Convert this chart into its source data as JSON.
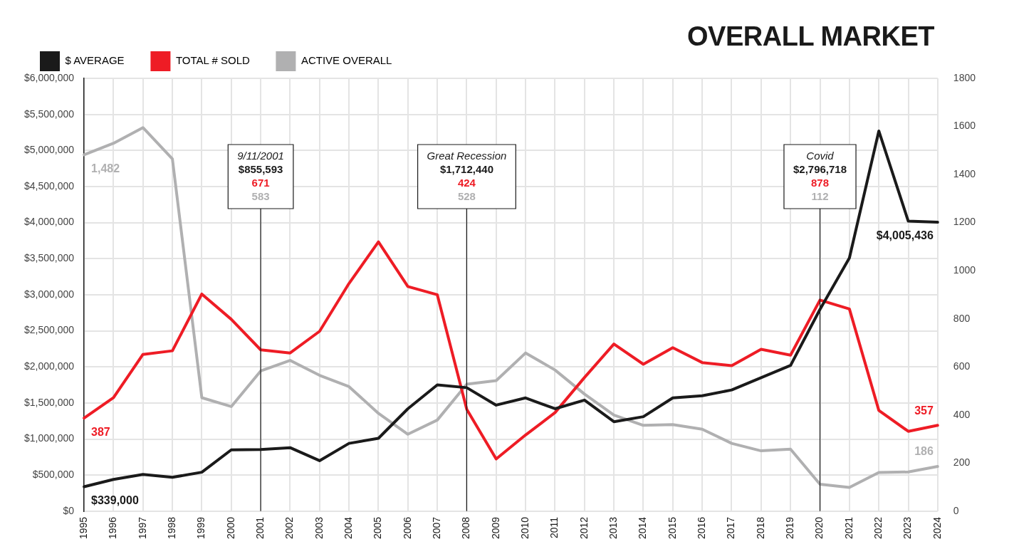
{
  "chart_data": {
    "type": "line",
    "title": "OVERALL MARKET",
    "categories": [
      "1995",
      "1996",
      "1997",
      "1998",
      "1999",
      "2000",
      "2001",
      "2002",
      "2003",
      "2004",
      "2005",
      "2006",
      "2007",
      "2008",
      "2009",
      "2010",
      "2011",
      "2012",
      "2013",
      "2014",
      "2015",
      "2016",
      "2017",
      "2018",
      "2019",
      "2020",
      "2021",
      "2022",
      "2023",
      "2024"
    ],
    "series": [
      {
        "name": "$ AVERAGE",
        "color": "#1a1a1a",
        "values": [
          339000,
          440000,
          510000,
          470000,
          540000,
          850000,
          855593,
          880000,
          700000,
          940000,
          1010000,
          1420000,
          1750000,
          1712440,
          1470000,
          1570000,
          1420000,
          1540000,
          1240000,
          1310000,
          1570000,
          1600000,
          1680000,
          1850000,
          2020000,
          2796718,
          3510000,
          5270000,
          4020000,
          4005436
        ],
        "value_labels": [
          "$339,000",
          null,
          null,
          null,
          null,
          null,
          null,
          null,
          null,
          null,
          null,
          null,
          null,
          null,
          null,
          null,
          null,
          null,
          null,
          null,
          null,
          null,
          null,
          null,
          null,
          null,
          null,
          null,
          null,
          "$4,005,436"
        ]
      },
      {
        "name": "TOTAL # SOLD",
        "color": "#ee1c25",
        "axis": "y2",
        "values": [
          387,
          472,
          652,
          667,
          903,
          798,
          671,
          658,
          748,
          947,
          1120,
          934,
          900,
          424,
          217,
          317,
          410,
          556,
          695,
          611,
          680,
          618,
          605,
          673,
          649,
          878,
          841,
          419,
          332,
          357
        ],
        "value_labels": [
          "387",
          null,
          null,
          null,
          null,
          null,
          null,
          null,
          null,
          null,
          null,
          null,
          null,
          null,
          null,
          null,
          null,
          null,
          null,
          null,
          null,
          null,
          null,
          null,
          null,
          null,
          null,
          null,
          null,
          "357"
        ]
      },
      {
        "name": "ACTIVE OVERALL",
        "color": "#b0b0b1",
        "axis": "y2",
        "values": [
          1482,
          1530,
          1595,
          1465,
          472,
          435,
          583,
          627,
          565,
          518,
          407,
          320,
          379,
          528,
          543,
          658,
          587,
          487,
          400,
          357,
          360,
          341,
          282,
          251,
          258,
          112,
          99,
          161,
          163,
          186
        ],
        "value_labels": [
          "1,482",
          null,
          null,
          null,
          null,
          null,
          null,
          null,
          null,
          null,
          null,
          null,
          null,
          null,
          null,
          null,
          null,
          null,
          null,
          null,
          null,
          null,
          null,
          null,
          null,
          null,
          null,
          null,
          null,
          "186"
        ]
      }
    ],
    "annotations": [
      "9/11/2001",
      "$855,593",
      "671",
      "583",
      "Great Recession",
      "$1,712,440",
      "424",
      "528",
      "Covid",
      "$2,796,718",
      "878",
      "112"
    ],
    "ylim": [
      0,
      6000000
    ],
    "yticks": [
      {
        "value": 0,
        "label": "$0"
      },
      {
        "value": 500000,
        "label": "$500,000"
      },
      {
        "value": 1000000,
        "label": "$1,000,000"
      },
      {
        "value": 1500000,
        "label": "$1,500,000"
      },
      {
        "value": 2000000,
        "label": "$2,000,000"
      },
      {
        "value": 2500000,
        "label": "$2,500,000"
      },
      {
        "value": 3000000,
        "label": "$3,000,000"
      },
      {
        "value": 3500000,
        "label": "$3,500,000"
      },
      {
        "value": 4000000,
        "label": "$4,000,000"
      },
      {
        "value": 4500000,
        "label": "$4,500,000"
      },
      {
        "value": 5000000,
        "label": "$5,000,000"
      },
      {
        "value": 5500000,
        "label": "$5,500,000"
      },
      {
        "value": 6000000,
        "label": "$6,000,000"
      }
    ],
    "y2lim": [
      0,
      1800
    ],
    "y2ticks": [
      0,
      200,
      400,
      600,
      800,
      1000,
      1200,
      1400,
      1600,
      1800
    ],
    "ref_lines": [
      {
        "axis": "x",
        "value": "2001",
        "color": "#1a1a1a"
      },
      {
        "axis": "x",
        "value": "2008",
        "color": "#1a1a1a"
      },
      {
        "axis": "x",
        "value": "2020",
        "color": "#1a1a1a"
      }
    ],
    "grid": true,
    "legend": "top left",
    "marker": "none",
    "line_style": "solid"
  }
}
